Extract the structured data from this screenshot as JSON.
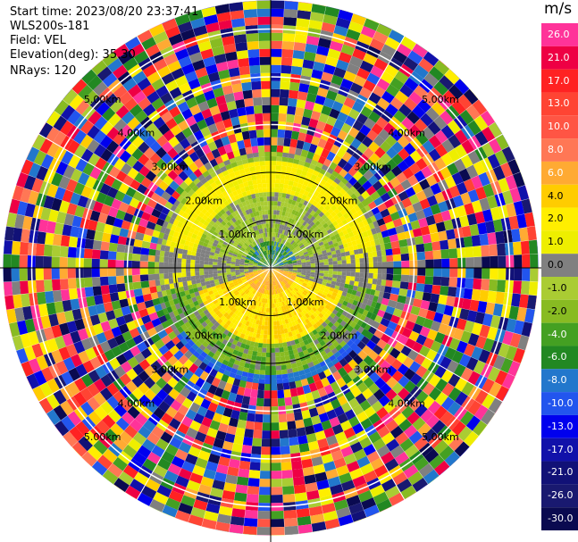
{
  "header": {
    "start_time": "Start time: 2023/08/20 23:37:41",
    "instrument": "WLS200s-181",
    "field": "Field: VEL",
    "elevation": "Elevation(deg): 35.30",
    "nrays": "NRays: 120"
  },
  "colorbar": {
    "unit": "m/s",
    "levels": [
      {
        "label": "26.0",
        "color": "#ff3399"
      },
      {
        "label": "21.0",
        "color": "#ee0044"
      },
      {
        "label": "17.0",
        "color": "#ff2222"
      },
      {
        "label": "13.0",
        "color": "#ff4433"
      },
      {
        "label": "10.0",
        "color": "#ff5544"
      },
      {
        "label": "8.0",
        "color": "#ff7755"
      },
      {
        "label": "6.0",
        "color": "#ffaa33"
      },
      {
        "label": "4.0",
        "color": "#ffcc00"
      },
      {
        "label": "2.0",
        "color": "#ffee00"
      },
      {
        "label": "1.0",
        "color": "#eeee00"
      },
      {
        "label": "0.0",
        "color": "#808080"
      },
      {
        "label": "-1.0",
        "color": "#aacc33"
      },
      {
        "label": "-2.0",
        "color": "#88bb22"
      },
      {
        "label": "-4.0",
        "color": "#44a022"
      },
      {
        "label": "-6.0",
        "color": "#228822"
      },
      {
        "label": "-8.0",
        "color": "#2277cc"
      },
      {
        "label": "-10.0",
        "color": "#2255ee"
      },
      {
        "label": "-13.0",
        "color": "#0000ee"
      },
      {
        "label": "-17.0",
        "color": "#1111aa"
      },
      {
        "label": "-21.0",
        "color": "#111177"
      },
      {
        "label": "-26.0",
        "color": "#191970"
      },
      {
        "label": "-30.0",
        "color": "#0a0a50"
      }
    ]
  },
  "chart_data": {
    "type": "heatmap",
    "projection": "polar PPI",
    "field": "VEL",
    "unit": "m/s",
    "n_rays": 120,
    "ring_ranges_km": [
      1.0,
      2.0,
      3.0,
      4.0,
      5.0
    ],
    "ring_labels": [
      "1.00km",
      "2.00km",
      "3.00km",
      "4.00km",
      "5.00km"
    ],
    "radial_lines_deg": [
      0,
      30,
      60,
      90,
      120,
      150,
      180,
      210,
      240,
      270,
      300,
      330
    ],
    "max_range_km": 5.6,
    "valid_data_range_km": 2.4,
    "grid": true,
    "colorbar_position": "right",
    "pattern_summary": {
      "north_sector_near": "-4.0 to 0.0 (green/gray)",
      "south_sector_near": "4.0 to 6.0 (orange)",
      "annulus_1_5_to_2_2km": "1.0 to 4.0 (yellow) north, -8.0 to -6.0 (green/blue) south",
      "beyond_2_4km": "noise (random colors)"
    }
  }
}
